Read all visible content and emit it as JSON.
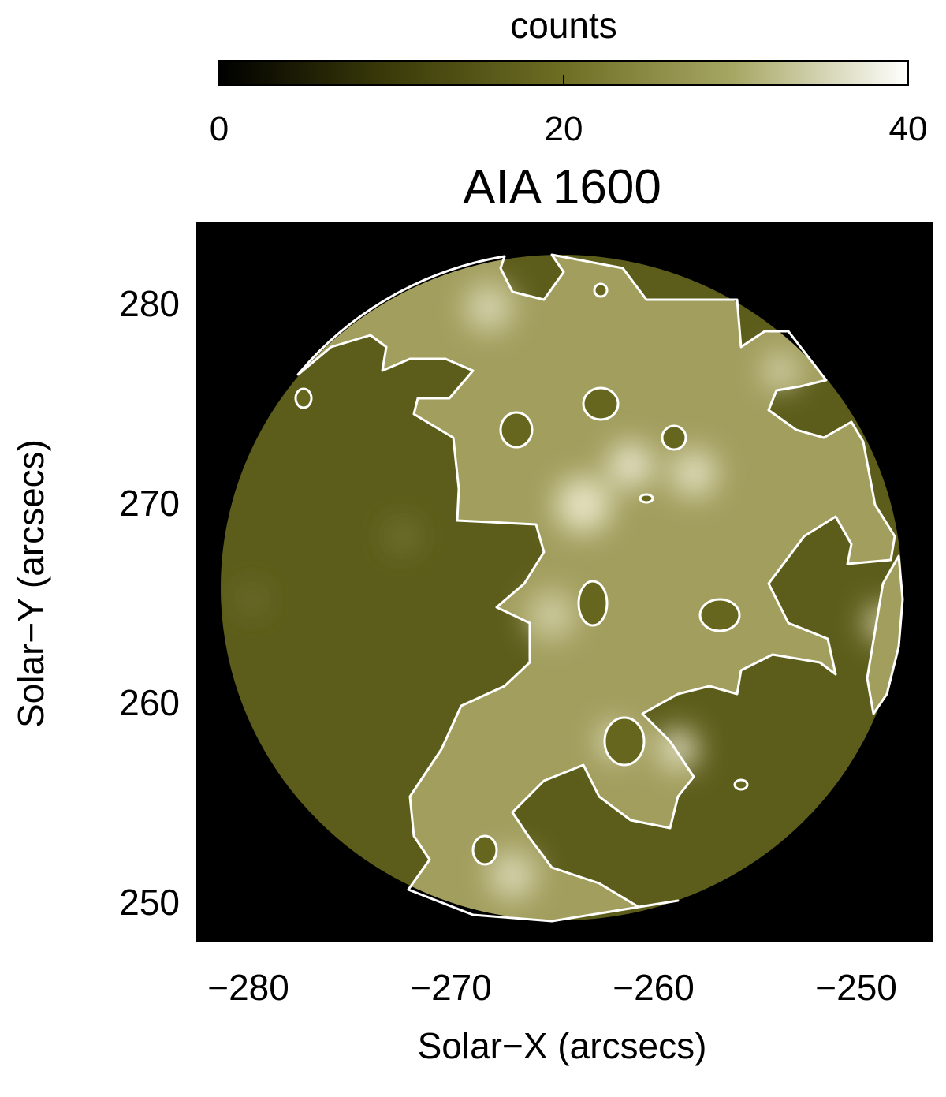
{
  "chart_data": {
    "type": "image",
    "title": "AIA 1600",
    "x_label": "Solar−X (arcsecs)",
    "y_label": "Solar−Y (arcsecs)",
    "xlim": [
      -282.53,
      -246.23
    ],
    "ylim": [
      248.06,
      284.03
    ],
    "xticks": [
      {
        "value": -280,
        "label": "−280"
      },
      {
        "value": -270,
        "label": "−270"
      },
      {
        "value": -260,
        "label": "−260"
      },
      {
        "value": -250,
        "label": "−250"
      }
    ],
    "yticks": [
      250,
      260,
      270,
      280
    ],
    "colorbar": {
      "label": "counts",
      "lim": [
        0,
        40
      ],
      "ticks": [
        0,
        20,
        40
      ],
      "colormap": [
        "#000000",
        "#3c3c0a",
        "#6e6e24",
        "#a8a866",
        "#ffffff"
      ]
    },
    "contour_color": "#ffffff"
  }
}
